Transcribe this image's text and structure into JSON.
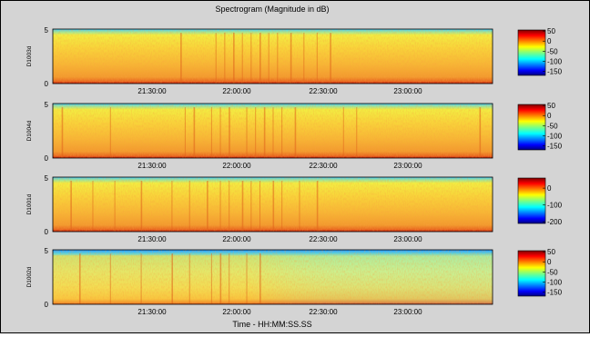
{
  "title": "Spectrogram (Magnitude in dB)",
  "xlabel": "Time - HH:MM:SS.SS",
  "chart_data": {
    "type": "heatmap",
    "title": "Spectrogram (Magnitude in dB)",
    "xlabel": "Time - HH:MM:SS.SS",
    "x_ticks": [
      "21:30:00",
      "22:00:00",
      "22:30:00",
      "23:00:00"
    ],
    "panels": [
      {
        "ylabel": "D1003d",
        "y_ticks": [
          "5",
          "0"
        ],
        "ylim": [
          0,
          5
        ],
        "colorbar_ticks": [
          "50",
          "0",
          "-50",
          "-100",
          "-150"
        ],
        "colorbar_range": [
          -170,
          55
        ],
        "dominant_level": "high",
        "vertical_streaks": [
          0.29,
          0.37,
          0.39,
          0.41,
          0.43,
          0.45,
          0.47,
          0.49,
          0.51,
          0.54,
          0.57,
          0.6,
          0.63
        ]
      },
      {
        "ylabel": "D1004d",
        "y_ticks": [
          "5",
          "0"
        ],
        "ylim": [
          0,
          5
        ],
        "colorbar_ticks": [
          "50",
          "0",
          "-50",
          "-100",
          "-150"
        ],
        "colorbar_range": [
          -170,
          55
        ],
        "dominant_level": "high",
        "vertical_streaks": [
          0.02,
          0.13,
          0.3,
          0.32,
          0.36,
          0.38,
          0.4,
          0.44,
          0.46,
          0.48,
          0.5,
          0.52,
          0.55,
          0.66,
          0.69,
          0.97
        ]
      },
      {
        "ylabel": "D1001d",
        "y_ticks": [
          "5",
          "0"
        ],
        "ylim": [
          0,
          5
        ],
        "colorbar_ticks": [
          "0",
          "-100",
          "-200"
        ],
        "colorbar_range": [
          -210,
          60
        ],
        "dominant_level": "high",
        "vertical_streaks": [
          0.04,
          0.09,
          0.14,
          0.2,
          0.27,
          0.31,
          0.35,
          0.38,
          0.4,
          0.43,
          0.45,
          0.47,
          0.5,
          0.52,
          0.56,
          0.6
        ]
      },
      {
        "ylabel": "D1002d",
        "y_ticks": [
          "5",
          "0"
        ],
        "ylim": [
          0,
          5
        ],
        "colorbar_ticks": [
          "50",
          "0",
          "-50",
          "-100",
          "-150"
        ],
        "colorbar_range": [
          -170,
          55
        ],
        "dominant_level": "medium",
        "vertical_streaks": [
          0.06,
          0.13,
          0.2,
          0.27,
          0.31,
          0.36,
          0.38,
          0.4,
          0.44,
          0.47
        ]
      }
    ],
    "grid": false,
    "colormap": "jet"
  }
}
